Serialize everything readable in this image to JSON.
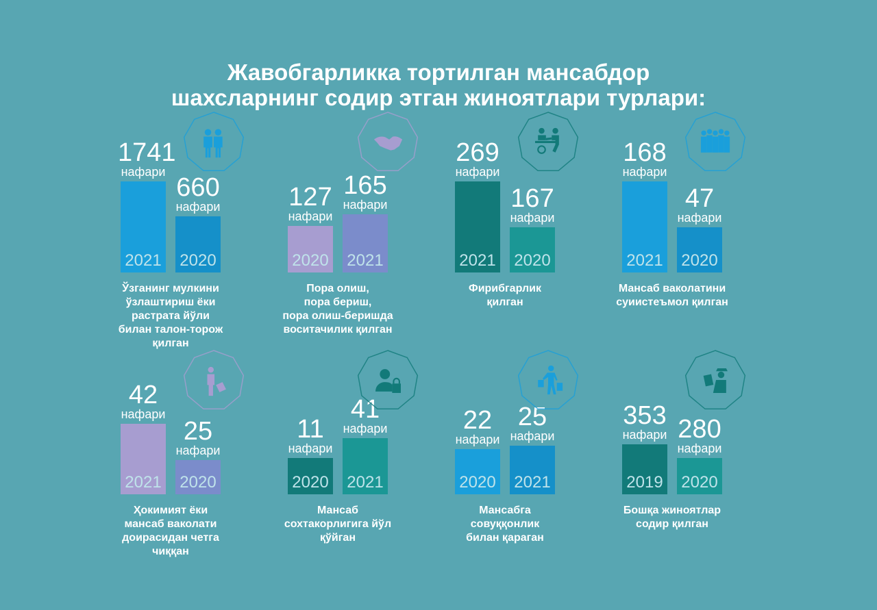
{
  "title": {
    "line1": "Жавобгарликка тортилган мансабдор",
    "line2": "шахсларнинг содир этган жиноятлари турлари:"
  },
  "unit_label": "нафари",
  "chart_data": {
    "type": "bar",
    "title": "Жавобгарликка тортилган мансабдор шахсларнинг содир этган жиноятлари турлари:",
    "xlabel": "",
    "ylabel": "нафари",
    "grid": false,
    "panels": [
      {
        "id": "embezzlement",
        "caption": [
          "Ўзганинг мулкини",
          "ўзлаштириш ёки",
          "растрата йўли",
          "билан талон-торож",
          "қилган"
        ],
        "icon": "couple-people-icon",
        "categories": [
          "2021",
          "2020"
        ],
        "values": [
          1741,
          660
        ],
        "colors": [
          "#1a9fdb",
          "#1590c9"
        ]
      },
      {
        "id": "bribery",
        "caption": [
          "Пора олиш,",
          "пора бериш,",
          "пора олиш-беришда",
          "воситачилик қилган"
        ],
        "icon": "handshake-icon",
        "categories": [
          "2020",
          "2021"
        ],
        "values": [
          127,
          165
        ],
        "colors": [
          "#a79dd0",
          "#7b8ccb"
        ]
      },
      {
        "id": "fraud",
        "caption": [
          "Фирибгарлик",
          "қилган"
        ],
        "icon": "fraud-exchange-icon",
        "categories": [
          "2021",
          "2020"
        ],
        "values": [
          269,
          167
        ],
        "colors": [
          "#127a79",
          "#1b9795"
        ]
      },
      {
        "id": "abuse-of-power",
        "caption": [
          "Мансаб ваколатини",
          "суиистеъмол қилган"
        ],
        "icon": "group-people-icon",
        "categories": [
          "2021",
          "2020"
        ],
        "values": [
          168,
          47
        ],
        "colors": [
          "#1a9fdb",
          "#1590c9"
        ]
      },
      {
        "id": "exceeding-authority",
        "caption": [
          "Ҳокимият ёки",
          "мансаб ваколати",
          "доирасидан четга",
          "чиққан"
        ],
        "icon": "person-briefcase-icon",
        "categories": [
          "2021",
          "2020"
        ],
        "values": [
          42,
          25
        ],
        "colors": [
          "#a79dd0",
          "#7b8ccb"
        ]
      },
      {
        "id": "forgery",
        "caption": [
          "Мансаб",
          "сохтакорлигига йўл",
          "қўйган"
        ],
        "icon": "person-lock-icon",
        "categories": [
          "2020",
          "2021"
        ],
        "values": [
          11,
          41
        ],
        "colors": [
          "#127a79",
          "#1b9795"
        ]
      },
      {
        "id": "negligence",
        "caption": [
          "Мансабга",
          "совуққонлик",
          "билан қараган"
        ],
        "icon": "person-shopping-bags-icon",
        "categories": [
          "2020",
          "2021"
        ],
        "values": [
          22,
          25
        ],
        "colors": [
          "#1a9fdb",
          "#1590c9"
        ]
      },
      {
        "id": "other-crimes",
        "caption": [
          "Бошқа жиноятлар",
          "содир қилган"
        ],
        "icon": "officer-document-icon",
        "categories": [
          "2019",
          "2020"
        ],
        "values": [
          353,
          280
        ],
        "colors": [
          "#127a79",
          "#1b9795"
        ]
      }
    ]
  },
  "colors": {
    "background": "#58a6b2",
    "text": "#ffffff",
    "blue_icon": "#1a9fdb",
    "purple_icon": "#7b8ccb",
    "teal_icon": "#127a79"
  }
}
